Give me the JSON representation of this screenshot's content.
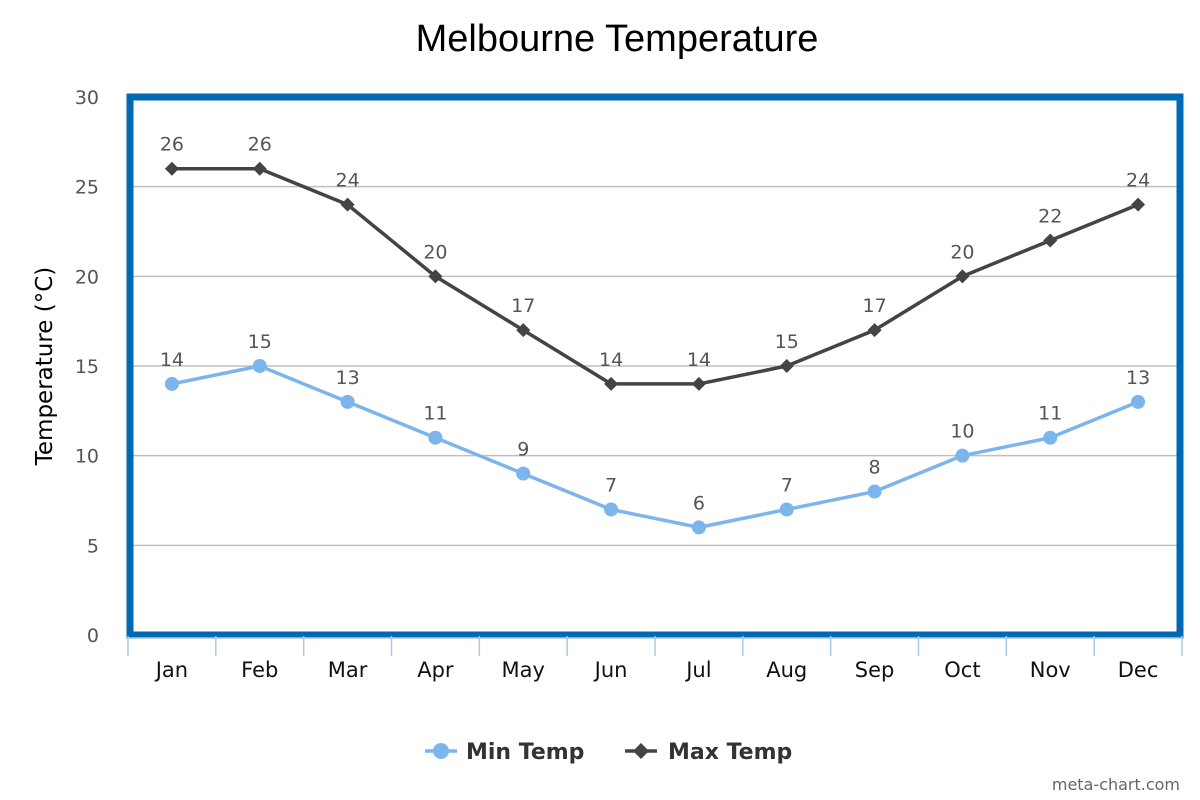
{
  "chart_data": {
    "type": "line",
    "title": "Melbourne Temperature",
    "xlabel": "",
    "ylabel": "Temperature (°C)",
    "ylim": [
      0,
      30
    ],
    "yticks": [
      0,
      5,
      10,
      15,
      20,
      25,
      30
    ],
    "categories": [
      "Jan",
      "Feb",
      "Mar",
      "Apr",
      "May",
      "Jun",
      "Jul",
      "Aug",
      "Sep",
      "Oct",
      "Nov",
      "Dec"
    ],
    "series": [
      {
        "name": "Min Temp",
        "values": [
          14,
          15,
          13,
          11,
          9,
          7,
          6,
          7,
          8,
          10,
          11,
          13
        ],
        "color": "#7cb5ec",
        "marker": "circle"
      },
      {
        "name": "Max Temp",
        "values": [
          26,
          26,
          24,
          20,
          17,
          14,
          14,
          15,
          17,
          20,
          22,
          24
        ],
        "color": "#434348",
        "marker": "diamond"
      }
    ],
    "grid": true,
    "data_labels": true,
    "legend_position": "bottom",
    "plot_border_color": "#0069b4"
  },
  "credit": "meta-chart.com"
}
